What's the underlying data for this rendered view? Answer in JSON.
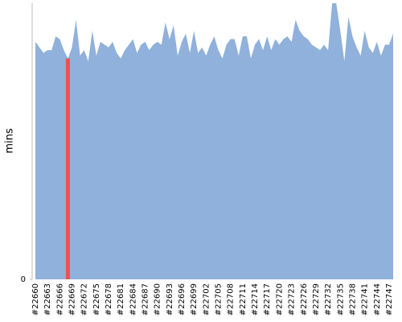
{
  "chart_data": {
    "type": "area",
    "y_label": "mins",
    "categories": [
      "#22660",
      null,
      null,
      "#22663",
      null,
      null,
      "#22666",
      null,
      null,
      "#22669",
      null,
      null,
      "#22672",
      null,
      null,
      "#22675",
      null,
      null,
      "#22678",
      null,
      null,
      "#22681",
      null,
      null,
      "#22684",
      null,
      null,
      "#22687",
      null,
      null,
      "#22690",
      null,
      null,
      "#22693",
      null,
      null,
      "#22696",
      null,
      null,
      "#22699",
      null,
      null,
      "#22702",
      null,
      null,
      "#22705",
      null,
      null,
      "#22708",
      null,
      null,
      "#22711",
      null,
      null,
      "#22714",
      null,
      null,
      "#22717",
      null,
      null,
      "#22720",
      null,
      null,
      "#22723",
      null,
      null,
      "#22726",
      null,
      null,
      "#22729",
      null,
      null,
      "#22732",
      null,
      null,
      "#22735",
      null,
      null,
      "#22738",
      null,
      null,
      "#22741",
      null,
      null,
      "#22744",
      null,
      null,
      "#22747",
      null
    ],
    "values": [
      86,
      84,
      82,
      83,
      83,
      88,
      87,
      83,
      80,
      84,
      94,
      81,
      83,
      79,
      90,
      81,
      86,
      85,
      84,
      86,
      82,
      80,
      83,
      85,
      87,
      82,
      85,
      86,
      83,
      85,
      86,
      85,
      93,
      87,
      92,
      81,
      86,
      89,
      82,
      90,
      82,
      84,
      81,
      85,
      88,
      83,
      80,
      85,
      87,
      87,
      81,
      88,
      88,
      80,
      85,
      87,
      83,
      88,
      83,
      87,
      85,
      87,
      88,
      86,
      94,
      90,
      88,
      87,
      85,
      84,
      83,
      85,
      83,
      100,
      100,
      90,
      79,
      95,
      88,
      84,
      81,
      90,
      84,
      82,
      86,
      81,
      85,
      85,
      89
    ],
    "color": "#8fb1db",
    "highlight_index": 8,
    "highlight_color": "#f05050",
    "ylim": [
      0,
      100
    ],
    "yticks": [
      0
    ]
  }
}
